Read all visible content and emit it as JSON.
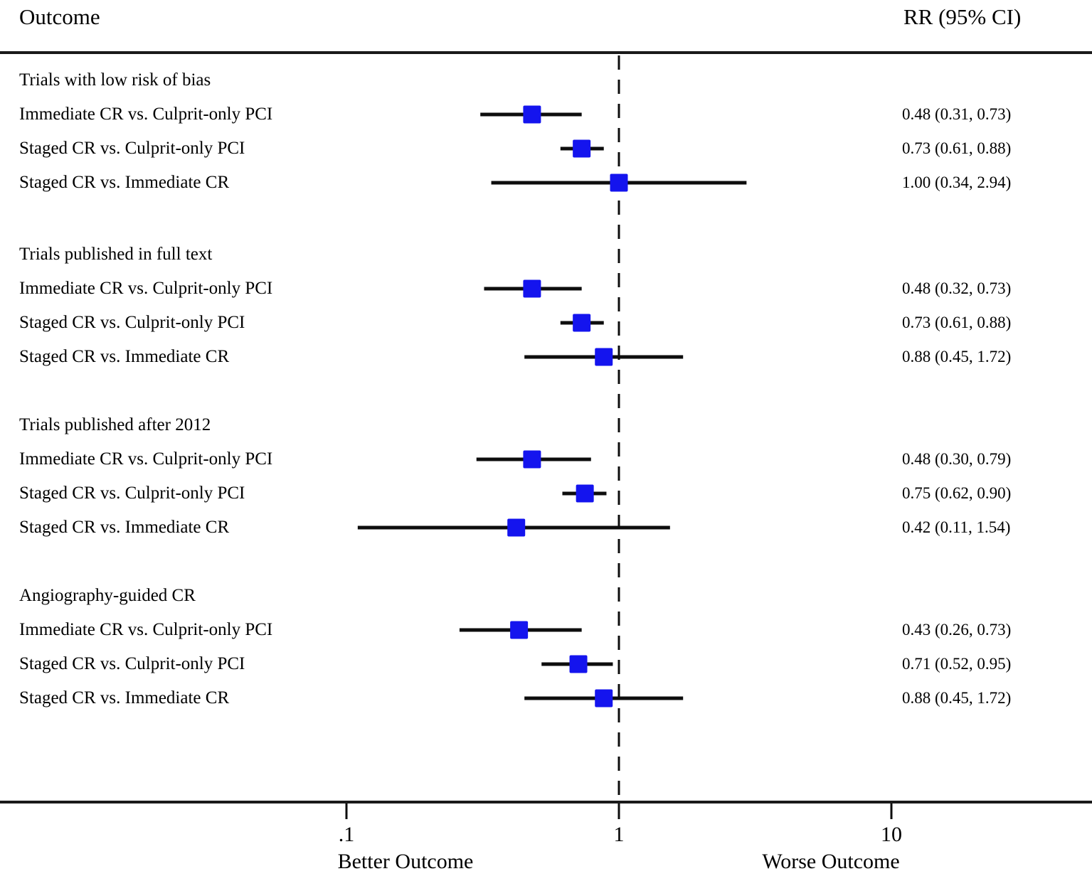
{
  "header": {
    "outcome_label": "Outcome",
    "rr_label": "RR (95% CI)"
  },
  "axis": {
    "scale": "log10",
    "reference_value": 1,
    "ticks": [
      {
        "label": ".1",
        "value": 0.1
      },
      {
        "label": "1",
        "value": 1
      },
      {
        "label": "10",
        "value": 10
      }
    ],
    "better_label": "Better Outcome",
    "worse_label": "Worse Outcome"
  },
  "colors": {
    "marker": "#1414ee",
    "line": "#0d0d0d",
    "text": "#000000"
  },
  "chart_data": {
    "type": "forest",
    "title": "",
    "xlabel_left": "Better Outcome",
    "xlabel_right": "Worse Outcome",
    "x_ticks": [
      0.1,
      1,
      10
    ],
    "reference_line": 1,
    "groups": [
      {
        "label": "Trials with low risk of bias",
        "rows": [
          {
            "label": "Immediate CR vs. Culprit-only PCI",
            "rr": 0.48,
            "ci_low": 0.31,
            "ci_high": 0.73,
            "text": "0.48 (0.31, 0.73)"
          },
          {
            "label": "Staged CR vs. Culprit-only PCI",
            "rr": 0.73,
            "ci_low": 0.61,
            "ci_high": 0.88,
            "text": "0.73 (0.61, 0.88)"
          },
          {
            "label": "Staged CR vs. Immediate CR",
            "rr": 1.0,
            "ci_low": 0.34,
            "ci_high": 2.94,
            "text": "1.00 (0.34, 2.94)"
          }
        ]
      },
      {
        "label": "Trials published in full text",
        "rows": [
          {
            "label": "Immediate CR vs. Culprit-only PCI",
            "rr": 0.48,
            "ci_low": 0.32,
            "ci_high": 0.73,
            "text": "0.48 (0.32, 0.73)"
          },
          {
            "label": "Staged CR vs. Culprit-only PCI",
            "rr": 0.73,
            "ci_low": 0.61,
            "ci_high": 0.88,
            "text": "0.73 (0.61, 0.88)"
          },
          {
            "label": "Staged CR vs. Immediate CR",
            "rr": 0.88,
            "ci_low": 0.45,
            "ci_high": 1.72,
            "text": "0.88 (0.45, 1.72)"
          }
        ]
      },
      {
        "label": "Trials published after 2012",
        "rows": [
          {
            "label": "Immediate CR vs. Culprit-only PCI",
            "rr": 0.48,
            "ci_low": 0.3,
            "ci_high": 0.79,
            "text": "0.48 (0.30, 0.79)"
          },
          {
            "label": "Staged CR vs. Culprit-only PCI",
            "rr": 0.75,
            "ci_low": 0.62,
            "ci_high": 0.9,
            "text": "0.75 (0.62, 0.90)"
          },
          {
            "label": "Staged CR vs. Immediate CR",
            "rr": 0.42,
            "ci_low": 0.11,
            "ci_high": 1.54,
            "text": "0.42 (0.11, 1.54)"
          }
        ]
      },
      {
        "label": "Angiography-guided CR",
        "rows": [
          {
            "label": "Immediate CR vs. Culprit-only PCI",
            "rr": 0.43,
            "ci_low": 0.26,
            "ci_high": 0.73,
            "text": "0.43 (0.26, 0.73)"
          },
          {
            "label": "Staged CR vs. Culprit-only PCI",
            "rr": 0.71,
            "ci_low": 0.52,
            "ci_high": 0.95,
            "text": "0.71 (0.52, 0.95)"
          },
          {
            "label": "Staged CR vs. Immediate CR",
            "rr": 0.88,
            "ci_low": 0.45,
            "ci_high": 1.72,
            "text": "0.88 (0.45, 1.72)"
          }
        ]
      }
    ]
  }
}
